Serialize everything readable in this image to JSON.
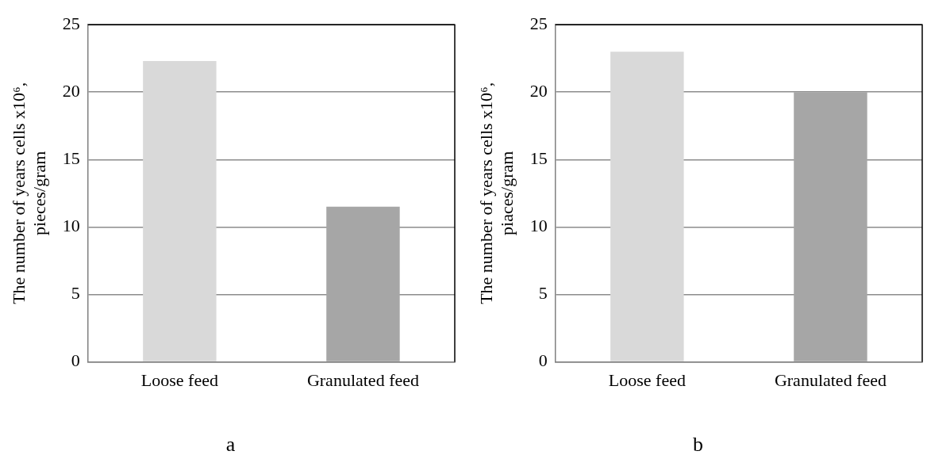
{
  "chart_data": [
    {
      "type": "bar",
      "title": "a",
      "ylabel": "The number of years cells x10⁶, pieces/gram",
      "categories": [
        "Loose feed",
        "Granulated feed"
      ],
      "values": [
        22.3,
        11.5
      ],
      "colors": [
        "#d9d9d9",
        "#a6a6a6"
      ],
      "ylim": [
        0,
        25
      ],
      "yticks": [
        0,
        5,
        10,
        15,
        20,
        25
      ],
      "grid": "y"
    },
    {
      "type": "bar",
      "title": "b",
      "ylabel": "The number of years cells x10⁶, piaces/gram",
      "categories": [
        "Loose feed",
        "Granulated feed"
      ],
      "values": [
        23,
        20
      ],
      "colors": [
        "#d9d9d9",
        "#a6a6a6"
      ],
      "ylim": [
        0,
        25
      ],
      "yticks": [
        0,
        5,
        10,
        15,
        20,
        25
      ],
      "grid": "y"
    }
  ]
}
